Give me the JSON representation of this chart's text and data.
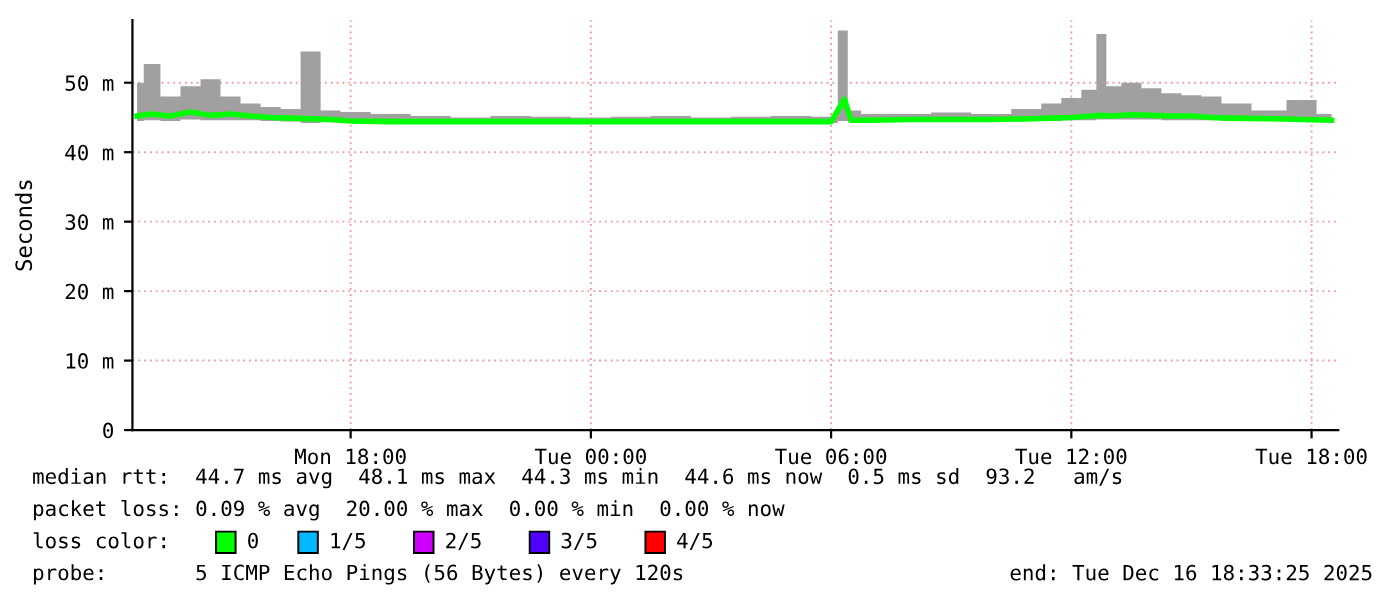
{
  "chart_data": {
    "type": "line",
    "ylabel": "Seconds",
    "x": [
      "2025-12-15T12:40",
      "2025-12-15T13:00",
      "2025-12-15T13:30",
      "2025-12-15T14:00",
      "2025-12-15T14:30",
      "2025-12-15T15:00",
      "2025-12-15T15:30",
      "2025-12-15T16:00",
      "2025-12-15T16:30",
      "2025-12-15T17:00",
      "2025-12-15T17:30",
      "2025-12-15T18:00",
      "2025-12-15T19:00",
      "2025-12-15T20:00",
      "2025-12-15T21:00",
      "2025-12-15T22:00",
      "2025-12-15T23:00",
      "2025-12-16T00:00",
      "2025-12-16T01:00",
      "2025-12-16T02:00",
      "2025-12-16T03:00",
      "2025-12-16T04:00",
      "2025-12-16T05:00",
      "2025-12-16T06:00",
      "2025-12-16T06:20",
      "2025-12-16T06:30",
      "2025-12-16T07:00",
      "2025-12-16T08:00",
      "2025-12-16T09:00",
      "2025-12-16T10:00",
      "2025-12-16T11:00",
      "2025-12-16T11:30",
      "2025-12-16T12:00",
      "2025-12-16T12:30",
      "2025-12-16T12:45",
      "2025-12-16T13:00",
      "2025-12-16T13:30",
      "2025-12-16T14:00",
      "2025-12-16T14:30",
      "2025-12-16T15:00",
      "2025-12-16T15:30",
      "2025-12-16T16:00",
      "2025-12-16T17:00",
      "2025-12-16T17:45",
      "2025-12-16T18:30"
    ],
    "series": [
      {
        "name": "0",
        "color": "#00ff00",
        "values": [
          45.2,
          45.5,
          45.2,
          45.8,
          45.3,
          45.5,
          45.2,
          45.0,
          44.9,
          44.8,
          44.7,
          44.5,
          44.4,
          44.4,
          44.4,
          44.4,
          44.4,
          44.4,
          44.4,
          44.4,
          44.4,
          44.4,
          44.4,
          44.4,
          47.6,
          44.6,
          44.6,
          44.7,
          44.7,
          44.7,
          44.8,
          44.9,
          45.0,
          45.2,
          45.3,
          45.2,
          45.4,
          45.3,
          45.2,
          45.2,
          45.0,
          44.9,
          44.8,
          44.7,
          44.6
        ],
        "lower": [
          44.5,
          44.6,
          44.5,
          44.7,
          44.6,
          44.6,
          44.6,
          44.5,
          44.4,
          44.2,
          44.3,
          44.2,
          44.2,
          44.2,
          44.2,
          44.2,
          44.2,
          44.2,
          44.2,
          44.2,
          44.2,
          44.2,
          44.2,
          44.2,
          44.5,
          44.3,
          44.4,
          44.5,
          44.5,
          44.5,
          44.5,
          44.5,
          44.6,
          44.6,
          44.7,
          44.7,
          44.7,
          44.7,
          44.6,
          44.6,
          44.6,
          44.5,
          44.5,
          44.5,
          44.4
        ],
        "upper": [
          50.0,
          52.7,
          48.0,
          49.5,
          50.5,
          48.0,
          47.0,
          46.5,
          46.2,
          54.5,
          46.0,
          45.8,
          45.5,
          45.2,
          45.0,
          45.2,
          45.1,
          45.0,
          45.1,
          45.2,
          45.0,
          45.1,
          45.2,
          45.1,
          57.5,
          46.0,
          45.5,
          45.5,
          45.7,
          45.5,
          46.2,
          47.0,
          47.8,
          49.0,
          57.0,
          49.5,
          50.0,
          49.2,
          48.5,
          48.2,
          48.0,
          47.0,
          46.0,
          47.5,
          45.5
        ]
      },
      {
        "name": "1/5",
        "color": "#00b8ff",
        "values": [
          null,
          null,
          null,
          null,
          null,
          null,
          null,
          null,
          null,
          null,
          null,
          null,
          null,
          null,
          null,
          null,
          null,
          null,
          null,
          null,
          null,
          null,
          null,
          null,
          null,
          null,
          null,
          null,
          null,
          null,
          null,
          null,
          null,
          null,
          null,
          null,
          null,
          null,
          null,
          null,
          null,
          null,
          null,
          null,
          null
        ]
      },
      {
        "name": "2/5",
        "color": "#d000ff",
        "values": [
          null,
          null,
          null,
          null,
          null,
          null,
          null,
          null,
          null,
          null,
          null,
          null,
          null,
          null,
          null,
          null,
          null,
          null,
          null,
          null,
          null,
          null,
          null,
          null,
          null,
          null,
          null,
          null,
          null,
          null,
          null,
          null,
          null,
          null,
          null,
          null,
          null,
          null,
          null,
          null,
          null,
          null,
          null,
          null,
          null
        ]
      },
      {
        "name": "3/5",
        "color": "#5000ff",
        "values": [
          null,
          null,
          null,
          null,
          null,
          null,
          null,
          null,
          null,
          null,
          null,
          null,
          null,
          null,
          null,
          null,
          null,
          null,
          null,
          null,
          null,
          null,
          null,
          null,
          null,
          null,
          null,
          null,
          null,
          null,
          null,
          null,
          null,
          null,
          null,
          null,
          null,
          null,
          null,
          null,
          null,
          null,
          null,
          null,
          null
        ]
      },
      {
        "name": "4/5",
        "color": "#ff0000",
        "values": [
          null,
          null,
          null,
          null,
          null,
          null,
          null,
          null,
          null,
          null,
          null,
          null,
          null,
          null,
          null,
          null,
          null,
          null,
          null,
          null,
          null,
          null,
          null,
          null,
          null,
          null,
          null,
          null,
          null,
          null,
          null,
          null,
          null,
          null,
          null,
          null,
          null,
          null,
          null,
          null,
          null,
          null,
          null,
          null,
          null
        ]
      }
    ],
    "xlim": [
      "2025-12-15T12:33",
      "2025-12-16T18:40"
    ],
    "xticks": [
      {
        "value": "2025-12-15T18:00",
        "label": "Mon 18:00"
      },
      {
        "value": "2025-12-16T00:00",
        "label": "Tue 00:00"
      },
      {
        "value": "2025-12-16T06:00",
        "label": "Tue 06:00"
      },
      {
        "value": "2025-12-16T12:00",
        "label": "Tue 12:00"
      },
      {
        "value": "2025-12-16T18:00",
        "label": "Tue 18:00"
      }
    ],
    "ylim": [
      0,
      59
    ],
    "yticks": [
      0,
      {
        "value": 10,
        "label": "10 m"
      },
      {
        "value": 20,
        "label": "20 m"
      },
      {
        "value": 30,
        "label": "30 m"
      },
      {
        "value": 40,
        "label": "40 m"
      },
      {
        "value": 50,
        "label": "50 m"
      }
    ],
    "grid": true,
    "legend": "bottom",
    "legend_title": "loss color:",
    "annotations": [
      "median rtt:  44.7 ms avg  48.1 ms max  44.3 ms min  44.6 ms now  0.5 ms sd  93.2   am/s",
      "packet loss: 0.09 % avg  20.00 % max  0.00 % min  0.00 % now",
      "probe:       5 ICMP Echo Pings (56 Bytes) every 120s",
      "end: Tue Dec 16 18:33:25 2025"
    ]
  }
}
